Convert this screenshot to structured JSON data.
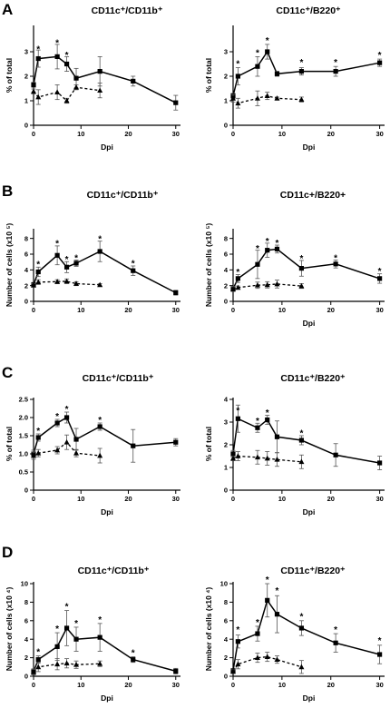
{
  "panel_letters": [
    "A",
    "B",
    "C",
    "D"
  ],
  "chart_data": [
    {
      "type": "line",
      "panel": "A",
      "title": "CD11c⁺/CD11b⁺",
      "xlabel": "Dpi",
      "ylabel": "% of total",
      "xlim": [
        0,
        31
      ],
      "ylim": [
        0,
        4
      ],
      "xticks": [
        0,
        10,
        20,
        30
      ],
      "yticks": [
        0,
        1,
        2,
        3
      ],
      "series": [
        {
          "marker": "square",
          "style": "solid",
          "x": [
            0,
            1,
            5,
            7,
            9,
            14,
            21,
            30
          ],
          "y": [
            1.65,
            2.72,
            2.8,
            2.5,
            1.92,
            2.2,
            1.8,
            0.92
          ],
          "err": [
            0.1,
            0.35,
            0.5,
            0.3,
            0.4,
            0.6,
            0.2,
            0.3
          ]
        },
        {
          "marker": "triangle",
          "style": "dashed",
          "x": [
            0,
            1,
            5,
            7,
            9,
            14
          ],
          "y": [
            1.38,
            1.15,
            1.35,
            1.0,
            1.55,
            1.42
          ],
          "err": [
            0.1,
            0.3,
            0.3,
            0.1,
            0.1,
            0.3
          ]
        }
      ],
      "stars": [
        {
          "x": 1,
          "y": 3.1
        },
        {
          "x": 5,
          "y": 3.35
        },
        {
          "x": 7,
          "y": 2.85
        }
      ]
    },
    {
      "type": "line",
      "panel": "A",
      "title": "CD11c⁺/B220⁺",
      "xlabel": "Dpi",
      "ylabel": "% of total",
      "xlim": [
        0,
        31
      ],
      "ylim": [
        0,
        4
      ],
      "xticks": [
        0,
        10,
        20,
        30
      ],
      "yticks": [
        0,
        1,
        2,
        3
      ],
      "series": [
        {
          "marker": "square",
          "style": "solid",
          "x": [
            0,
            1,
            5,
            7,
            9,
            14,
            21,
            30
          ],
          "y": [
            1.2,
            2.0,
            2.4,
            3.0,
            2.1,
            2.2,
            2.2,
            2.55
          ],
          "err": [
            0.1,
            0.35,
            0.4,
            0.3,
            0.1,
            0.15,
            0.2,
            0.15
          ]
        },
        {
          "marker": "triangle",
          "style": "dashed",
          "x": [
            0,
            1,
            5,
            7,
            9,
            14
          ],
          "y": [
            1.1,
            0.9,
            1.1,
            1.2,
            1.1,
            1.05
          ],
          "err": [
            0.15,
            0.2,
            0.3,
            0.15,
            0.05,
            0.1
          ]
        }
      ],
      "stars": [
        {
          "x": 1,
          "y": 2.5
        },
        {
          "x": 5,
          "y": 2.95
        },
        {
          "x": 7,
          "y": 3.45
        },
        {
          "x": 14,
          "y": 2.55
        },
        {
          "x": 21,
          "y": 2.55
        },
        {
          "x": 30,
          "y": 2.85
        }
      ]
    },
    {
      "type": "line",
      "panel": "B",
      "title": "CD11c⁺/CD11b⁺",
      "xlabel": "",
      "ylabel": "Number of cells (x10 ⁵)",
      "xlim": [
        0,
        31
      ],
      "ylim": [
        0,
        9
      ],
      "xticks": [
        0,
        10,
        20,
        30
      ],
      "yticks": [
        0,
        2,
        4,
        6,
        8
      ],
      "series": [
        {
          "marker": "square",
          "style": "solid",
          "x": [
            0,
            1,
            5,
            7,
            9,
            14,
            21,
            30
          ],
          "y": [
            2.1,
            3.75,
            5.85,
            4.35,
            4.85,
            6.35,
            3.9,
            1.1
          ],
          "err": [
            0.3,
            0.6,
            1.2,
            0.7,
            0.4,
            1.3,
            0.6,
            0.3
          ]
        },
        {
          "marker": "triangle",
          "style": "dashed",
          "x": [
            0,
            1,
            5,
            7,
            9,
            14
          ],
          "y": [
            2.05,
            2.45,
            2.5,
            2.55,
            2.25,
            2.1
          ],
          "err": [
            0.2,
            0.3,
            0.25,
            0.3,
            0.25,
            0.15
          ]
        }
      ],
      "stars": [
        {
          "x": 1,
          "y": 4.7
        },
        {
          "x": 5,
          "y": 7.3
        },
        {
          "x": 7,
          "y": 5.3
        },
        {
          "x": 9,
          "y": 5.5
        },
        {
          "x": 14,
          "y": 7.9
        },
        {
          "x": 21,
          "y": 4.8
        }
      ]
    },
    {
      "type": "line",
      "panel": "B",
      "title": "CD11c+/B220+",
      "xlabel": "Dpi",
      "ylabel": "Number of cells (x10 ⁵)",
      "xlim": [
        0,
        31
      ],
      "ylim": [
        0,
        9
      ],
      "xticks": [
        0,
        10,
        20,
        30
      ],
      "yticks": [
        0,
        2,
        4,
        6,
        8
      ],
      "series": [
        {
          "marker": "square",
          "style": "solid",
          "x": [
            0,
            1,
            5,
            7,
            9,
            14,
            21,
            30
          ],
          "y": [
            1.6,
            2.9,
            4.7,
            6.5,
            6.65,
            4.2,
            4.75,
            2.9
          ],
          "err": [
            0.3,
            0.5,
            1.8,
            0.9,
            0.5,
            1.0,
            0.5,
            0.6
          ]
        },
        {
          "marker": "triangle",
          "style": "dashed",
          "x": [
            0,
            1,
            5,
            7,
            9,
            14
          ],
          "y": [
            1.55,
            1.75,
            2.05,
            2.1,
            2.2,
            1.95
          ],
          "err": [
            0.3,
            0.2,
            0.4,
            0.4,
            0.5,
            0.3
          ]
        }
      ],
      "stars": [
        {
          "x": 1,
          "y": 3.7
        },
        {
          "x": 5,
          "y": 6.7
        },
        {
          "x": 7,
          "y": 7.6
        },
        {
          "x": 9,
          "y": 7.4
        },
        {
          "x": 14,
          "y": 5.4
        },
        {
          "x": 21,
          "y": 5.5
        },
        {
          "x": 30,
          "y": 3.8
        }
      ]
    },
    {
      "type": "line",
      "panel": "C",
      "title": "CD11c⁺/CD11b⁺",
      "xlabel": "Dpi",
      "ylabel": "% of total",
      "xlim": [
        0,
        31
      ],
      "ylim": [
        0,
        2.5
      ],
      "xticks": [
        0,
        10,
        20,
        30
      ],
      "yticks": [
        0,
        0.5,
        1.0,
        1.5,
        2.0,
        2.5
      ],
      "ytick_labels": [
        "0",
        "0.5",
        "1.0",
        "1.5",
        "2.0",
        "2.5"
      ],
      "series": [
        {
          "marker": "square",
          "style": "solid",
          "x": [
            0,
            1,
            5,
            7,
            9,
            14,
            21,
            30
          ],
          "y": [
            1.0,
            1.45,
            1.85,
            2.0,
            1.4,
            1.75,
            1.22,
            1.32
          ],
          "err": [
            0.1,
            0.1,
            0.1,
            0.15,
            0.3,
            0.1,
            0.45,
            0.1
          ]
        },
        {
          "marker": "triangle",
          "style": "dashed",
          "x": [
            0,
            1,
            5,
            7,
            9,
            14
          ],
          "y": [
            0.95,
            1.02,
            1.1,
            1.32,
            1.02,
            0.95
          ],
          "err": [
            0.1,
            0.1,
            0.1,
            0.2,
            0.1,
            0.2
          ]
        }
      ],
      "stars": [
        {
          "x": 1,
          "y": 1.63
        },
        {
          "x": 5,
          "y": 2.02
        },
        {
          "x": 7,
          "y": 2.22
        },
        {
          "x": 14,
          "y": 1.92
        }
      ]
    },
    {
      "type": "line",
      "panel": "C",
      "title": "CD11c⁺/B220⁺",
      "xlabel": "Dpi",
      "ylabel": "% of total",
      "xlim": [
        0,
        31
      ],
      "ylim": [
        0,
        4
      ],
      "xticks": [
        0,
        10,
        20,
        30
      ],
      "yticks": [
        0,
        1,
        2,
        3,
        4
      ],
      "series": [
        {
          "marker": "square",
          "style": "solid",
          "x": [
            0,
            1,
            5,
            7,
            9,
            14,
            21,
            30
          ],
          "y": [
            1.6,
            3.15,
            2.75,
            3.1,
            2.35,
            2.2,
            1.55,
            1.2
          ],
          "err": [
            0.15,
            0.6,
            0.2,
            0.2,
            0.7,
            0.2,
            0.5,
            0.3
          ]
        },
        {
          "marker": "triangle",
          "style": "dashed",
          "x": [
            0,
            1,
            5,
            7,
            9,
            14
          ],
          "y": [
            1.4,
            1.5,
            1.45,
            1.4,
            1.35,
            1.25
          ],
          "err": [
            0.1,
            0.2,
            0.3,
            0.3,
            0.3,
            0.3
          ]
        }
      ],
      "stars": [
        {
          "x": 1,
          "y": 3.5
        },
        {
          "x": 5,
          "y": 3.05
        },
        {
          "x": 7,
          "y": 3.4
        },
        {
          "x": 14,
          "y": 2.5
        }
      ]
    },
    {
      "type": "line",
      "panel": "D",
      "title": "CD11c⁺/CD11b⁺",
      "xlabel": "Dpi",
      "ylabel": "Number of cells (x10 ⁴)",
      "xlim": [
        0,
        31
      ],
      "ylim": [
        0,
        10
      ],
      "xticks": [
        0,
        10,
        20,
        30
      ],
      "yticks": [
        0,
        2,
        4,
        6,
        8,
        10
      ],
      "series": [
        {
          "marker": "square",
          "style": "solid",
          "x": [
            0,
            1,
            5,
            7,
            9,
            14,
            21,
            30
          ],
          "y": [
            0.5,
            1.8,
            3.2,
            5.2,
            4.0,
            4.2,
            1.8,
            0.55
          ],
          "err": [
            0.3,
            0.4,
            1.5,
            1.9,
            1.3,
            1.5,
            0.3,
            0.3
          ]
        },
        {
          "marker": "triangle",
          "style": "dashed",
          "x": [
            0,
            1,
            5,
            7,
            9,
            14
          ],
          "y": [
            0.45,
            1.0,
            1.3,
            1.4,
            1.25,
            1.35
          ],
          "err": [
            0.3,
            0.5,
            0.6,
            0.5,
            0.4,
            0.3
          ]
        }
      ],
      "stars": [
        {
          "x": 1,
          "y": 2.6
        },
        {
          "x": 5,
          "y": 5.1
        },
        {
          "x": 7,
          "y": 7.5
        },
        {
          "x": 9,
          "y": 5.7
        },
        {
          "x": 14,
          "y": 6.1
        },
        {
          "x": 21,
          "y": 2.5
        }
      ]
    },
    {
      "type": "line",
      "panel": "D",
      "title": "CD11c⁺/B220⁺",
      "xlabel": "Dpi",
      "ylabel": "Number of cells (x10 ⁴)",
      "xlim": [
        0,
        31
      ],
      "ylim": [
        0,
        10
      ],
      "xticks": [
        0,
        10,
        20,
        30
      ],
      "yticks": [
        0,
        2,
        4,
        6,
        8,
        10
      ],
      "series": [
        {
          "marker": "square",
          "style": "solid",
          "x": [
            0,
            1,
            5,
            7,
            9,
            14,
            21,
            30
          ],
          "y": [
            0.6,
            3.75,
            4.6,
            8.2,
            6.7,
            5.2,
            3.6,
            2.35
          ],
          "err": [
            0.2,
            0.7,
            0.8,
            1.8,
            2.0,
            0.8,
            1.0,
            1.0
          ]
        },
        {
          "marker": "triangle",
          "style": "dashed",
          "x": [
            0,
            1,
            5,
            7,
            9,
            14
          ],
          "y": [
            0.5,
            1.3,
            2.0,
            2.1,
            1.8,
            1.0
          ],
          "err": [
            0.2,
            0.5,
            0.5,
            0.5,
            0.4,
            0.7
          ]
        }
      ],
      "stars": [
        {
          "x": 1,
          "y": 5.0
        },
        {
          "x": 5,
          "y": 5.8
        },
        {
          "x": 7,
          "y": 10.4
        },
        {
          "x": 9,
          "y": 9.2
        },
        {
          "x": 14,
          "y": 6.4
        },
        {
          "x": 21,
          "y": 5.0
        },
        {
          "x": 30,
          "y": 3.8
        }
      ]
    }
  ]
}
